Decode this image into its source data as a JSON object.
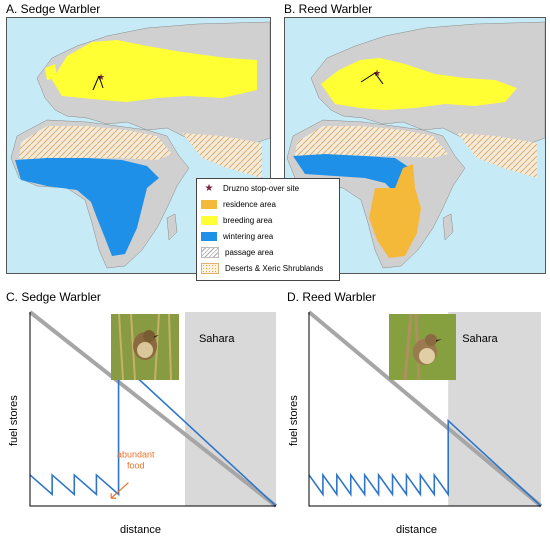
{
  "panels": {
    "a_title": "A. Sedge Warbler",
    "b_title": "B. Reed Warbler",
    "c_title": "C. Sedge Warbler",
    "d_title": "D. Reed Warbler"
  },
  "legend": {
    "items": [
      {
        "label": "Druzno stop-over site",
        "symbol": "star-icon",
        "color": "#7a1f3d"
      },
      {
        "label": "residence area",
        "color": "#f5b93a"
      },
      {
        "label": "breeding area",
        "color": "#ffff33"
      },
      {
        "label": "wintering area",
        "color": "#1e90e8"
      },
      {
        "label": "passage area",
        "color": "#ffffff",
        "pattern": "hatched"
      },
      {
        "label": "Deserts & Xeric Shrublands",
        "color": "#fdf3e0",
        "pattern": "dotted-orange"
      }
    ]
  },
  "colors": {
    "ocean": "#c6ebf7",
    "land": "#d0d0d0",
    "sahara_band": "#d9d9d9",
    "fuel_line": "#2e75c8",
    "reference_line": "#a6a6a6",
    "annotation": "#e8742a"
  },
  "chart_data": [
    {
      "type": "line",
      "title": "C. Sedge Warbler",
      "xlabel": "distance",
      "ylabel": "fuel stores",
      "region_label": "Sahara",
      "annotation": "abundant food",
      "series": [
        {
          "values": [
            [
              0.0,
              0.16
            ],
            [
              0.09,
              0.06
            ],
            [
              0.09,
              0.16
            ],
            [
              0.18,
              0.06
            ],
            [
              0.18,
              0.16
            ],
            [
              0.27,
              0.06
            ],
            [
              0.27,
              0.16
            ],
            [
              0.36,
              0.06
            ],
            [
              0.36,
              0.75
            ],
            [
              1.0,
              0.0
            ]
          ]
        }
      ],
      "reference_line": [
        [
          0.0,
          1.0
        ],
        [
          1.0,
          0.0
        ]
      ],
      "region": [
        0.63,
        1.0
      ]
    },
    {
      "type": "line",
      "title": "D. Reed Warbler",
      "xlabel": "distance",
      "ylabel": "fuel stores",
      "region_label": "Sahara",
      "series": [
        {
          "values": [
            [
              0.0,
              0.16
            ],
            [
              0.06,
              0.06
            ],
            [
              0.06,
              0.16
            ],
            [
              0.12,
              0.06
            ],
            [
              0.12,
              0.16
            ],
            [
              0.18,
              0.06
            ],
            [
              0.18,
              0.16
            ],
            [
              0.24,
              0.06
            ],
            [
              0.24,
              0.16
            ],
            [
              0.3,
              0.06
            ],
            [
              0.3,
              0.16
            ],
            [
              0.36,
              0.06
            ],
            [
              0.36,
              0.16
            ],
            [
              0.42,
              0.06
            ],
            [
              0.42,
              0.16
            ],
            [
              0.48,
              0.06
            ],
            [
              0.48,
              0.16
            ],
            [
              0.54,
              0.06
            ],
            [
              0.54,
              0.16
            ],
            [
              0.6,
              0.06
            ],
            [
              0.6,
              0.44
            ],
            [
              1.0,
              0.0
            ]
          ]
        }
      ],
      "reference_line": [
        [
          0.0,
          1.0
        ],
        [
          1.0,
          0.0
        ]
      ],
      "region": [
        0.6,
        1.0
      ]
    }
  ]
}
